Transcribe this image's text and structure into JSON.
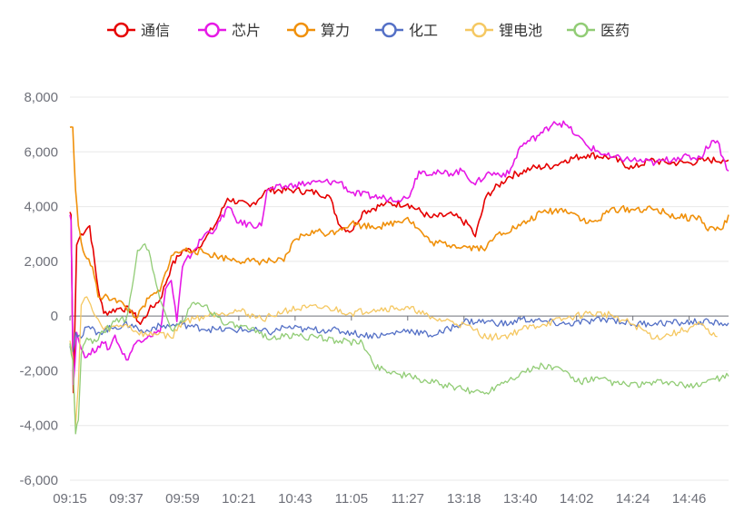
{
  "chart_data": {
    "type": "line",
    "title": "",
    "xlabel": "",
    "ylabel": "",
    "ylim": [
      -6000,
      8000
    ],
    "yticks": [
      -6000,
      -4000,
      -2000,
      0,
      2000,
      4000,
      6000,
      8000
    ],
    "ytick_labels": [
      "-6,000",
      "-4,000",
      "-2,000",
      "0",
      "2,000",
      "4,000",
      "6,000",
      "8,000"
    ],
    "xtick_labels": [
      "09:15",
      "09:37",
      "09:59",
      "10:21",
      "10:43",
      "11:05",
      "11:27",
      "13:18",
      "13:40",
      "14:02",
      "14:24",
      "14:46"
    ],
    "legend_position": "top-center",
    "grid": true,
    "series": [
      {
        "name": "通信",
        "color": "#e60000",
        "points": [
          [
            0,
            3800
          ],
          [
            0.2,
            3700
          ],
          [
            0.6,
            -2800
          ],
          [
            1.2,
            2600
          ],
          [
            2,
            3000
          ],
          [
            3.5,
            3300
          ],
          [
            5,
            1000
          ],
          [
            6,
            100
          ],
          [
            9,
            300
          ],
          [
            11,
            200
          ],
          [
            12.5,
            -300
          ],
          [
            14,
            200
          ],
          [
            16,
            600
          ],
          [
            18,
            1800
          ],
          [
            20,
            2400
          ],
          [
            22,
            2400
          ],
          [
            24,
            2800
          ],
          [
            26,
            3400
          ],
          [
            28,
            4300
          ],
          [
            32,
            4000
          ],
          [
            35,
            4600
          ],
          [
            40,
            4600
          ],
          [
            44,
            4500
          ],
          [
            46,
            4400
          ],
          [
            48,
            3300
          ],
          [
            50,
            3100
          ],
          [
            52,
            3800
          ],
          [
            56,
            4100
          ],
          [
            60,
            4100
          ],
          [
            64,
            3600
          ],
          [
            68,
            3700
          ],
          [
            71,
            3300
          ],
          [
            72,
            2900
          ],
          [
            74,
            4400
          ],
          [
            78,
            5100
          ],
          [
            82,
            5400
          ],
          [
            86,
            5500
          ],
          [
            88,
            5700
          ],
          [
            92,
            5900
          ],
          [
            96,
            5800
          ],
          [
            100,
            5400
          ],
          [
            103,
            5700
          ],
          [
            106,
            5600
          ],
          [
            110,
            5600
          ],
          [
            113,
            5700
          ],
          [
            116,
            5700
          ],
          [
            117,
            5700
          ]
        ]
      },
      {
        "name": "芯片",
        "color": "#e619e6",
        "points": [
          [
            0,
            3700
          ],
          [
            0.2,
            3500
          ],
          [
            0.6,
            -2500
          ],
          [
            1.2,
            -600
          ],
          [
            2,
            -1200
          ],
          [
            3,
            -1500
          ],
          [
            5,
            -1100
          ],
          [
            6,
            -1000
          ],
          [
            7,
            -1200
          ],
          [
            8,
            -700
          ],
          [
            9,
            -1200
          ],
          [
            10,
            -1600
          ],
          [
            12,
            -900
          ],
          [
            14,
            -700
          ],
          [
            16,
            -600
          ],
          [
            17,
            1000
          ],
          [
            18,
            1300
          ],
          [
            19,
            -200
          ],
          [
            20,
            1800
          ],
          [
            22,
            2400
          ],
          [
            24,
            3000
          ],
          [
            26,
            3200
          ],
          [
            28,
            4000
          ],
          [
            30,
            3400
          ],
          [
            34,
            3300
          ],
          [
            35,
            4600
          ],
          [
            40,
            4800
          ],
          [
            45,
            4900
          ],
          [
            48,
            4900
          ],
          [
            50,
            4500
          ],
          [
            56,
            4300
          ],
          [
            60,
            4300
          ],
          [
            62,
            5300
          ],
          [
            66,
            5200
          ],
          [
            70,
            5300
          ],
          [
            72,
            4800
          ],
          [
            74,
            5200
          ],
          [
            78,
            5200
          ],
          [
            80,
            6200
          ],
          [
            84,
            6700
          ],
          [
            86,
            7100
          ],
          [
            88,
            7000
          ],
          [
            90,
            6600
          ],
          [
            92,
            6200
          ],
          [
            96,
            5800
          ],
          [
            100,
            5700
          ],
          [
            104,
            5600
          ],
          [
            108,
            5800
          ],
          [
            112,
            5800
          ],
          [
            114,
            6400
          ],
          [
            115,
            6400
          ],
          [
            116,
            5800
          ],
          [
            117,
            5300
          ]
        ]
      },
      {
        "name": "算力",
        "color": "#f0900a",
        "points": [
          [
            0,
            6900
          ],
          [
            0.5,
            6900
          ],
          [
            1,
            4600
          ],
          [
            1.5,
            3300
          ],
          [
            2,
            2700
          ],
          [
            3,
            2100
          ],
          [
            4,
            1800
          ],
          [
            5,
            700
          ],
          [
            8,
            650
          ],
          [
            10,
            300
          ],
          [
            12,
            -50
          ],
          [
            14,
            650
          ],
          [
            16,
            900
          ],
          [
            17,
            1600
          ],
          [
            18,
            2200
          ],
          [
            20,
            2400
          ],
          [
            22,
            2400
          ],
          [
            24,
            2300
          ],
          [
            26,
            2200
          ],
          [
            28,
            2100
          ],
          [
            32,
            2000
          ],
          [
            36,
            2000
          ],
          [
            38,
            2000
          ],
          [
            40,
            2800
          ],
          [
            42,
            3000
          ],
          [
            44,
            3100
          ],
          [
            46,
            3000
          ],
          [
            48,
            3200
          ],
          [
            50,
            3400
          ],
          [
            52,
            3300
          ],
          [
            56,
            3300
          ],
          [
            60,
            3600
          ],
          [
            64,
            2700
          ],
          [
            68,
            2600
          ],
          [
            72,
            2500
          ],
          [
            74,
            2500
          ],
          [
            76,
            3000
          ],
          [
            80,
            3300
          ],
          [
            84,
            3800
          ],
          [
            88,
            3900
          ],
          [
            90,
            3700
          ],
          [
            92,
            3400
          ],
          [
            94,
            3500
          ],
          [
            96,
            3900
          ],
          [
            100,
            3900
          ],
          [
            104,
            3900
          ],
          [
            108,
            3600
          ],
          [
            112,
            3600
          ],
          [
            113,
            3200
          ],
          [
            116,
            3200
          ],
          [
            117,
            3700
          ]
        ]
      },
      {
        "name": "化工",
        "color": "#5470c6",
        "points": [
          [
            0,
            -1100
          ],
          [
            0.5,
            -1300
          ],
          [
            1,
            -600
          ],
          [
            2,
            -800
          ],
          [
            3,
            -400
          ],
          [
            5,
            -600
          ],
          [
            8,
            -400
          ],
          [
            11,
            -300
          ],
          [
            13,
            -600
          ],
          [
            15,
            -400
          ],
          [
            18,
            -350
          ],
          [
            20,
            -300
          ],
          [
            22,
            -400
          ],
          [
            26,
            -500
          ],
          [
            30,
            -500
          ],
          [
            34,
            -550
          ],
          [
            36,
            -600
          ],
          [
            38,
            -400
          ],
          [
            42,
            -500
          ],
          [
            46,
            -500
          ],
          [
            50,
            -600
          ],
          [
            52,
            -700
          ],
          [
            56,
            -700
          ],
          [
            60,
            -500
          ],
          [
            64,
            -700
          ],
          [
            66,
            -600
          ],
          [
            70,
            -200
          ],
          [
            74,
            -200
          ],
          [
            78,
            -300
          ],
          [
            80,
            -100
          ],
          [
            84,
            -200
          ],
          [
            88,
            -300
          ],
          [
            92,
            -200
          ],
          [
            96,
            -100
          ],
          [
            100,
            -300
          ],
          [
            104,
            -250
          ],
          [
            108,
            -250
          ],
          [
            112,
            -200
          ],
          [
            114,
            -250
          ],
          [
            117,
            -250
          ]
        ]
      },
      {
        "name": "锂电池",
        "color": "#f5c862",
        "points": [
          [
            0,
            -900
          ],
          [
            0.5,
            -1500
          ],
          [
            1,
            -4000
          ],
          [
            1.5,
            -2500
          ],
          [
            2,
            400
          ],
          [
            3,
            700
          ],
          [
            4,
            200
          ],
          [
            6,
            -500
          ],
          [
            10,
            -300
          ],
          [
            12,
            -600
          ],
          [
            14,
            -700
          ],
          [
            16,
            -600
          ],
          [
            18,
            -800
          ],
          [
            20,
            -200
          ],
          [
            22,
            -100
          ],
          [
            26,
            100
          ],
          [
            30,
            200
          ],
          [
            34,
            -100
          ],
          [
            36,
            0
          ],
          [
            38,
            200
          ],
          [
            42,
            300
          ],
          [
            46,
            300
          ],
          [
            50,
            100
          ],
          [
            54,
            250
          ],
          [
            58,
            300
          ],
          [
            62,
            200
          ],
          [
            64,
            -100
          ],
          [
            68,
            -200
          ],
          [
            72,
            -500
          ],
          [
            74,
            -800
          ],
          [
            78,
            -700
          ],
          [
            80,
            -500
          ],
          [
            84,
            -300
          ],
          [
            88,
            -100
          ],
          [
            92,
            100
          ],
          [
            96,
            50
          ],
          [
            100,
            -300
          ],
          [
            104,
            -800
          ],
          [
            108,
            -600
          ],
          [
            112,
            -300
          ],
          [
            114,
            -700
          ],
          [
            115,
            -750
          ]
        ]
      },
      {
        "name": "医药",
        "color": "#91cc75",
        "points": [
          [
            0,
            -1000
          ],
          [
            0.5,
            -1600
          ],
          [
            1,
            -4300
          ],
          [
            1.5,
            -3800
          ],
          [
            2,
            -1400
          ],
          [
            3,
            -800
          ],
          [
            4,
            -1000
          ],
          [
            6,
            -600
          ],
          [
            8,
            -200
          ],
          [
            10,
            -100
          ],
          [
            11,
            1000
          ],
          [
            12,
            2400
          ],
          [
            13,
            2600
          ],
          [
            14,
            2400
          ],
          [
            15,
            1500
          ],
          [
            16,
            600
          ],
          [
            18,
            -500
          ],
          [
            20,
            -200
          ],
          [
            22,
            500
          ],
          [
            24,
            400
          ],
          [
            26,
            0
          ],
          [
            28,
            -300
          ],
          [
            32,
            -500
          ],
          [
            36,
            -800
          ],
          [
            40,
            -700
          ],
          [
            44,
            -800
          ],
          [
            48,
            -900
          ],
          [
            52,
            -1000
          ],
          [
            54,
            -1800
          ],
          [
            58,
            -2100
          ],
          [
            62,
            -2300
          ],
          [
            66,
            -2500
          ],
          [
            70,
            -2700
          ],
          [
            74,
            -2800
          ],
          [
            76,
            -2500
          ],
          [
            80,
            -2100
          ],
          [
            84,
            -1800
          ],
          [
            88,
            -2000
          ],
          [
            90,
            -2400
          ],
          [
            94,
            -2300
          ],
          [
            98,
            -2500
          ],
          [
            102,
            -2500
          ],
          [
            106,
            -2400
          ],
          [
            110,
            -2600
          ],
          [
            114,
            -2300
          ],
          [
            117,
            -2200
          ]
        ]
      }
    ]
  }
}
